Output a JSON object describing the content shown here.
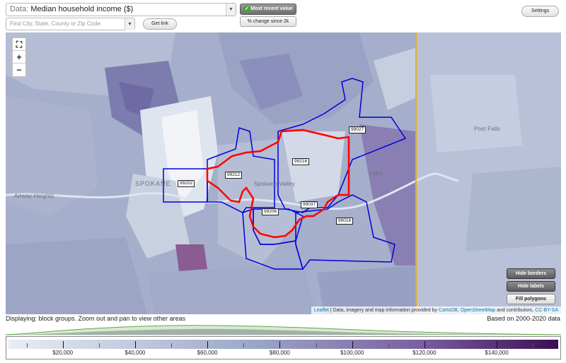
{
  "toolbar": {
    "data_prefix": "Data:",
    "data_selected": "Median household income ($)",
    "most_recent_label": "Most recent value",
    "percent_change_label": "% change since 2k",
    "search_placeholder": "Find City, State, County or Zip Code",
    "get_link_label": "Get link",
    "settings_label": "Settings"
  },
  "map": {
    "zoom_in": "+",
    "zoom_out": "−",
    "buttons": {
      "hide_borders": "Hide borders",
      "hide_labels": "Hide labels",
      "fill_polygons": "Fill polygons"
    },
    "attribution": {
      "leaflet": "Leaflet",
      "sep1": " | Data, imagery and map information provided by ",
      "cartodb": "CartoDB",
      "sep2": ", ",
      "osm": "OpenStreetMap",
      "sep3": " and contributors, ",
      "license": "CC-BY-SA"
    },
    "places": {
      "spokane": "SPOKANE",
      "spokane_valley": "Spokane Valley",
      "airway_heights": "Airway Heights",
      "post_falls": "Post Falls",
      "liberty_lake": "Lake"
    },
    "zip_labels": [
      "99027",
      "99216",
      "99212",
      "99202",
      "99206",
      "99037",
      "99016"
    ],
    "colors": {
      "highlight": "#ff0000",
      "boundary": "#0000dd",
      "state_line": "#e0b020"
    }
  },
  "footer": {
    "displaying": "Displaying: block groups. Zoom out and pan to view other areas",
    "based_on": "Based on 2000-2020 data"
  },
  "legend": {
    "tick_labels": [
      "$20,000",
      "$40,000",
      "$60,000",
      "$80,000",
      "$100,000",
      "$120,000",
      "$140,000"
    ],
    "tick_values": [
      20000,
      40000,
      60000,
      80000,
      100000,
      120000,
      140000
    ],
    "min": 5000,
    "max": 157000,
    "color_low": "#e8eef4",
    "color_high": "#3b0f52"
  }
}
